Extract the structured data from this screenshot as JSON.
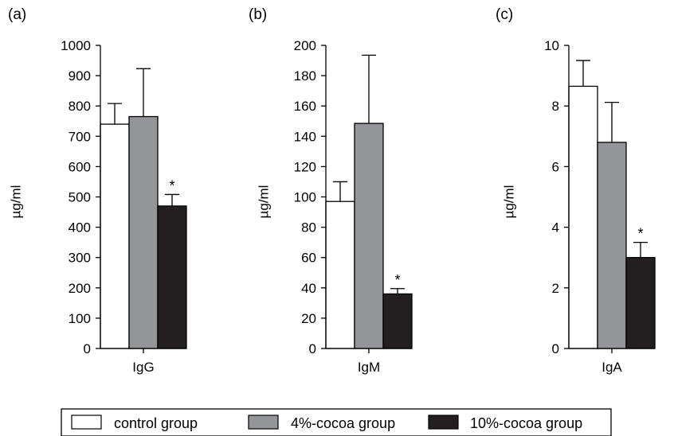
{
  "chart_data": [
    {
      "type": "bar",
      "panel_label": "(a)",
      "categories": [
        "IgG"
      ],
      "ylabel": "µg/ml",
      "ylim": [
        0,
        1000
      ],
      "yticks": [
        0,
        100,
        200,
        300,
        400,
        500,
        600,
        700,
        800,
        900,
        1000
      ],
      "series": [
        {
          "name": "control group",
          "values": [
            740
          ],
          "error": [
            68
          ],
          "color": "#ffffff",
          "significant": false
        },
        {
          "name": "4%-cocoa group",
          "values": [
            765
          ],
          "error": [
            158
          ],
          "color": "#939598",
          "significant": false
        },
        {
          "name": "10%-cocoa group",
          "values": [
            470
          ],
          "error": [
            38
          ],
          "color": "#231f20",
          "significant": true
        }
      ],
      "annotation": "*"
    },
    {
      "type": "bar",
      "panel_label": "(b)",
      "categories": [
        "IgM"
      ],
      "ylabel": "µg/ml",
      "ylim": [
        0,
        200
      ],
      "yticks": [
        0,
        20,
        40,
        60,
        80,
        100,
        120,
        140,
        160,
        180,
        200
      ],
      "series": [
        {
          "name": "control group",
          "values": [
            97
          ],
          "error": [
            13
          ],
          "color": "#ffffff",
          "significant": false
        },
        {
          "name": "4%-cocoa group",
          "values": [
            148.5
          ],
          "error": [
            45
          ],
          "color": "#939598",
          "significant": false
        },
        {
          "name": "10%-cocoa group",
          "values": [
            36
          ],
          "error": [
            3.5
          ],
          "color": "#231f20",
          "significant": true
        }
      ],
      "annotation": "*"
    },
    {
      "type": "bar",
      "panel_label": "(c)",
      "categories": [
        "IgA"
      ],
      "ylabel": "µg/ml",
      "ylim": [
        0,
        10
      ],
      "yticks": [
        0,
        2,
        4,
        6,
        8,
        10
      ],
      "series": [
        {
          "name": "control group",
          "values": [
            8.65
          ],
          "error": [
            0.85
          ],
          "color": "#ffffff",
          "significant": false
        },
        {
          "name": "4%-cocoa group",
          "values": [
            6.8
          ],
          "error": [
            1.32
          ],
          "color": "#939598",
          "significant": false
        },
        {
          "name": "10%-cocoa group",
          "values": [
            3.0
          ],
          "error": [
            0.5
          ],
          "color": "#231f20",
          "significant": true
        }
      ],
      "annotation": "*"
    }
  ],
  "legend": {
    "placement": "bottom",
    "items": [
      {
        "label": "control group",
        "color": "#ffffff"
      },
      {
        "label": "4%-cocoa group",
        "color": "#939598"
      },
      {
        "label": "10%-cocoa group",
        "color": "#231f20"
      }
    ]
  }
}
